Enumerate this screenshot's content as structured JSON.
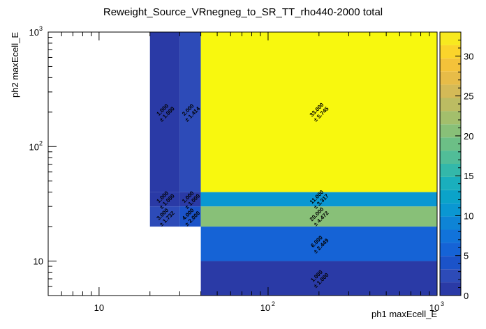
{
  "chart_data": {
    "type": "heatmap",
    "title": "Reweight_Source_VRnegneg_to_SR_TT_rho440-2000 total",
    "xlabel": "ph1 maxEcell_E",
    "ylabel": "ph2 maxEcell_E",
    "x_scale": "log",
    "y_scale": "log",
    "xlim": [
      5,
      1000
    ],
    "ylim": [
      5,
      1000
    ],
    "zlim": [
      0,
      33
    ],
    "x_ticks": [
      {
        "value": 10,
        "base": "10",
        "exp": ""
      },
      {
        "value": 100,
        "base": "10",
        "exp": "2"
      },
      {
        "value": 1000,
        "base": "10",
        "exp": "3"
      }
    ],
    "y_ticks": [
      {
        "value": 10,
        "base": "10",
        "exp": ""
      },
      {
        "value": 100,
        "base": "10",
        "exp": "2"
      },
      {
        "value": 1000,
        "base": "10",
        "exp": "3"
      }
    ],
    "z_ticks": [
      "0",
      "5",
      "10",
      "15",
      "20",
      "25",
      "30"
    ],
    "cells": [
      {
        "x0": 20,
        "x1": 30,
        "y0": 40,
        "y1": 1000,
        "value": 1,
        "label": "1.000",
        "err": "± 1.000"
      },
      {
        "x0": 30,
        "x1": 40,
        "y0": 40,
        "y1": 1000,
        "value": 2,
        "label": "2.000",
        "err": "± 1.414"
      },
      {
        "x0": 40,
        "x1": 1000,
        "y0": 40,
        "y1": 1000,
        "value": 33,
        "label": "33.000",
        "err": "± 5.745"
      },
      {
        "x0": 20,
        "x1": 30,
        "y0": 30,
        "y1": 40,
        "value": 1,
        "label": "1.000",
        "err": "± 1.000"
      },
      {
        "x0": 30,
        "x1": 40,
        "y0": 30,
        "y1": 40,
        "value": 1,
        "label": "1.000",
        "err": "± 1.000"
      },
      {
        "x0": 40,
        "x1": 1000,
        "y0": 30,
        "y1": 40,
        "value": 11,
        "label": "11.000",
        "err": "± 3.317"
      },
      {
        "x0": 20,
        "x1": 30,
        "y0": 20,
        "y1": 30,
        "value": 3,
        "label": "3.000",
        "err": "± 1.732"
      },
      {
        "x0": 30,
        "x1": 40,
        "y0": 20,
        "y1": 30,
        "value": 4,
        "label": "4.000",
        "err": "± 2.000"
      },
      {
        "x0": 40,
        "x1": 1000,
        "y0": 20,
        "y1": 30,
        "value": 20,
        "label": "20.000",
        "err": "± 4.472"
      },
      {
        "x0": 40,
        "x1": 1000,
        "y0": 10,
        "y1": 20,
        "value": 6,
        "label": "6.000",
        "err": "± 2.449"
      },
      {
        "x0": 40,
        "x1": 1000,
        "y0": 5,
        "y1": 10,
        "value": 1,
        "label": "1.000",
        "err": "± 1.000"
      }
    ],
    "palette": [
      "#2a3aa6",
      "#2d4bb8",
      "#1b53c9",
      "#1563d6",
      "#1173da",
      "#0e84d6",
      "#0a97d2",
      "#0ba3c9",
      "#1aafbd",
      "#33b8aa",
      "#51bd98",
      "#6cbf86",
      "#88c078",
      "#a3bf6c",
      "#bcbc62",
      "#d4ba57",
      "#e7bc48",
      "#f4c23a",
      "#fbd42b",
      "#f8e91f"
    ],
    "top_color": "#f8f80e"
  }
}
